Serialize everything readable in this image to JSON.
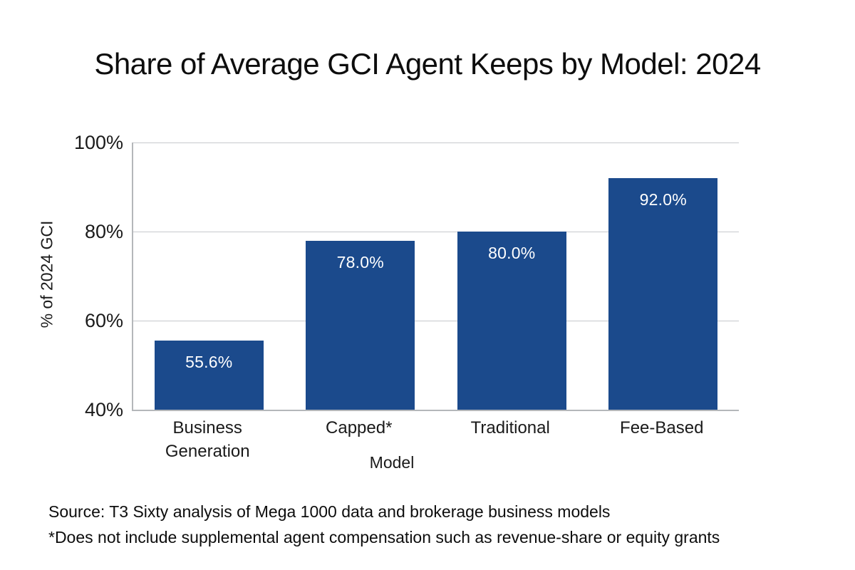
{
  "page": {
    "background_color": "#ffffff"
  },
  "chart_data": {
    "type": "bar",
    "title": "Share of Average GCI Agent Keeps by Model: 2024",
    "categories": [
      "Business Generation",
      "Capped*",
      "Traditional",
      "Fee-Based"
    ],
    "values": [
      55.6,
      78.0,
      80.0,
      92.0
    ],
    "value_labels": [
      "55.6%",
      "78.0%",
      "80.0%",
      "92.0%"
    ],
    "xlabel": "Model",
    "ylabel": "% of 2024 GCI",
    "ylim": [
      40,
      100
    ],
    "y_ticks": [
      100,
      80,
      60,
      40
    ],
    "y_tick_labels": [
      "100%",
      "80%",
      "60%",
      "40%"
    ],
    "grid": "horizontal-only",
    "legend": "none",
    "bar_color": "#1b4a8c",
    "bar_label_color": "#ffffff",
    "gridline_color": "#c6c9cc",
    "axis_color": "#b4b7ba"
  },
  "footer": {
    "source_line": "Source: T3 Sixty analysis of Mega 1000 data and brokerage business models",
    "note_line": "*Does not include supplemental agent compensation such as revenue-share or equity grants"
  }
}
